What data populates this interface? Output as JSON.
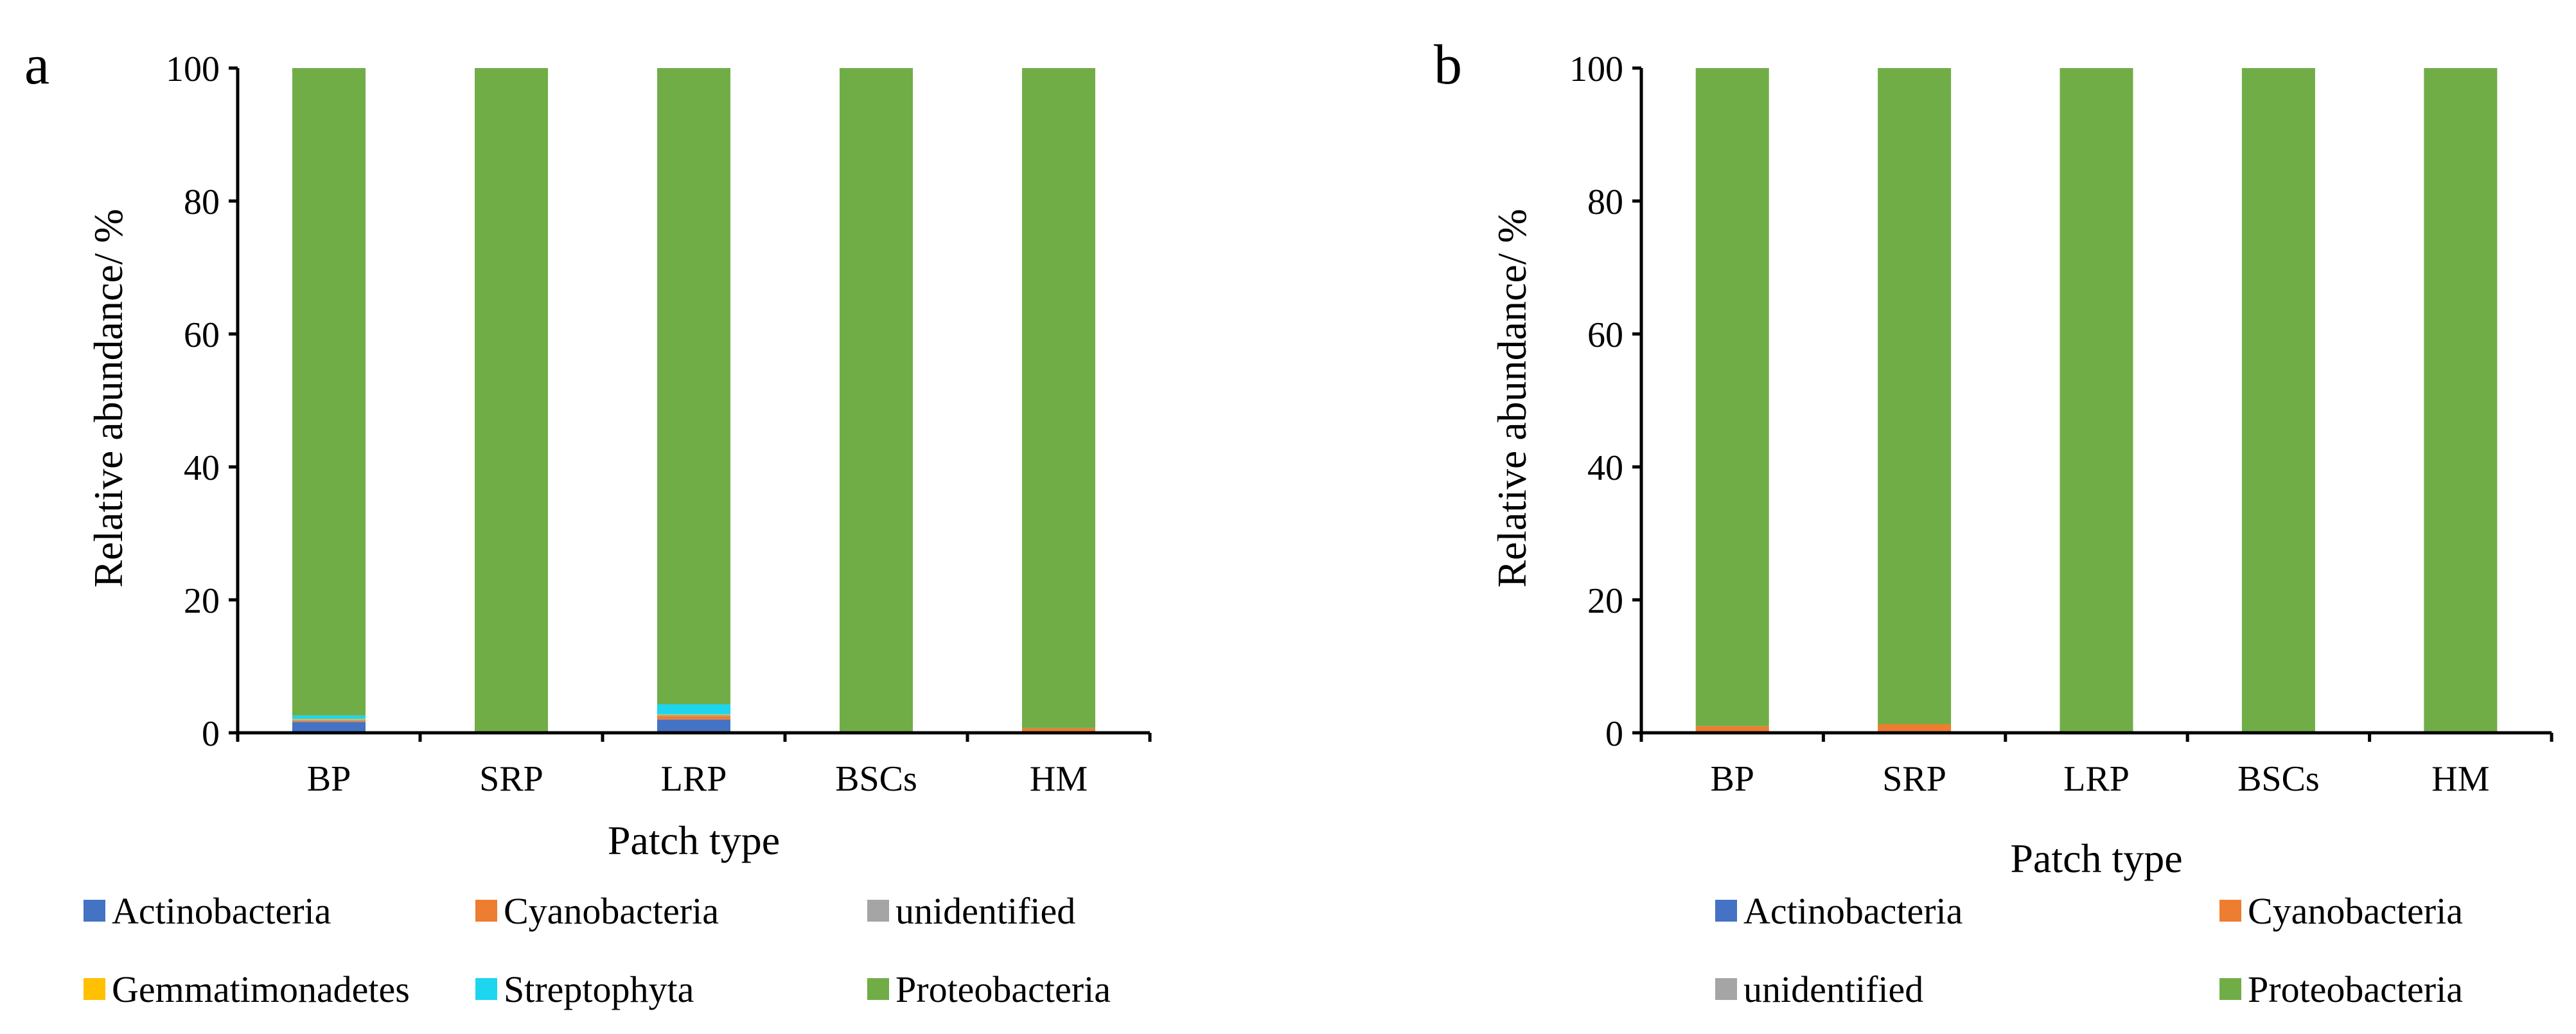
{
  "figure": {
    "panels": [
      "a",
      "b"
    ]
  },
  "chart_data": [
    {
      "type": "bar",
      "stacked": true,
      "panel_label": "a",
      "title": "",
      "xlabel": "Patch type",
      "ylabel": "Relative abundance/ %",
      "ylim": [
        0,
        100
      ],
      "yticks": [
        "0",
        "20",
        "40",
        "60",
        "80",
        "100"
      ],
      "categories": [
        "BP",
        "SRP",
        "LRP",
        "BSCs",
        "HM"
      ],
      "grid": false,
      "legend_position": "bottom",
      "series": [
        {
          "name": "Actinobacteria",
          "color": "#4472C4",
          "values": [
            1.6,
            0.1,
            2.0,
            0.1,
            0.1
          ]
        },
        {
          "name": "Cyanobacteria",
          "color": "#ED7D31",
          "values": [
            0.2,
            0.1,
            0.5,
            0.0,
            0.6
          ]
        },
        {
          "name": "unidentified",
          "color": "#A5A5A5",
          "values": [
            0.2,
            0.0,
            0.2,
            0.0,
            0.0
          ]
        },
        {
          "name": "Gemmatimonadetes",
          "color": "#FFC000",
          "values": [
            0.1,
            0.0,
            0.1,
            0.0,
            0.0
          ]
        },
        {
          "name": "Streptophyta",
          "color": "#1DD5EE",
          "values": [
            0.5,
            0.0,
            1.5,
            0.0,
            0.0
          ]
        },
        {
          "name": "Proteobacteria",
          "color": "#70AD47",
          "values": [
            97.4,
            99.8,
            95.7,
            99.9,
            99.3
          ]
        }
      ]
    },
    {
      "type": "bar",
      "stacked": true,
      "panel_label": "b",
      "title": "",
      "xlabel": "Patch type",
      "ylabel": "Relative abundance/ %",
      "ylim": [
        0,
        100
      ],
      "yticks": [
        "0",
        "20",
        "40",
        "60",
        "80",
        "100"
      ],
      "categories": [
        "BP",
        "SRP",
        "LRP",
        "BSCs",
        "HM"
      ],
      "grid": false,
      "legend_position": "bottom",
      "series": [
        {
          "name": "Actinobacteria",
          "color": "#4472C4",
          "values": [
            0.0,
            0.0,
            0.0,
            0.0,
            0.0
          ]
        },
        {
          "name": "Cyanobacteria",
          "color": "#ED7D31",
          "values": [
            1.0,
            1.3,
            0.0,
            0.0,
            0.0
          ]
        },
        {
          "name": "unidentified",
          "color": "#A5A5A5",
          "values": [
            0.0,
            0.0,
            0.0,
            0.0,
            0.0
          ]
        },
        {
          "name": "Proteobacteria",
          "color": "#70AD47",
          "values": [
            99.0,
            98.7,
            100.0,
            100.0,
            100.0
          ]
        }
      ]
    }
  ]
}
